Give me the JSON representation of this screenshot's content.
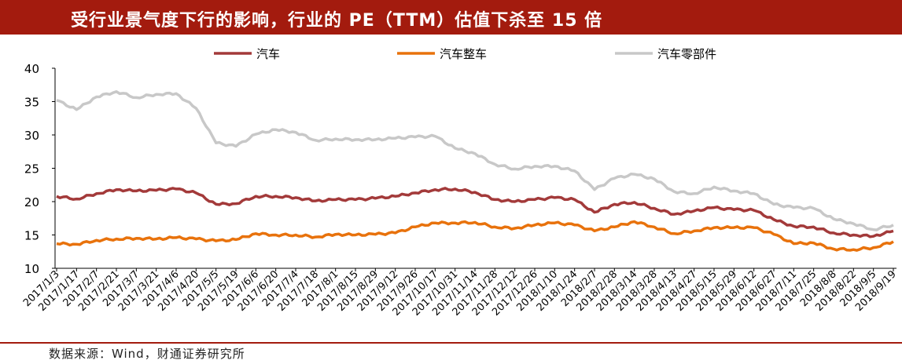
{
  "header": {
    "title": "受行业景气度下行的影响，行业的 PE（TTM）估值下杀至 15 倍"
  },
  "footer": {
    "source": "数据来源：Wind，财通证券研究所"
  },
  "colors": {
    "brand": "#a31b0e",
    "series": [
      "#a33a3a",
      "#e8720c",
      "#c8c8c8"
    ]
  },
  "chart_data": {
    "type": "line",
    "title": "受行业景气度下行的影响，行业的 PE（TTM）估值下杀至 15 倍",
    "xlabel": "",
    "ylabel": "",
    "ylim": [
      10,
      40
    ],
    "yticks": [
      10,
      15,
      20,
      25,
      30,
      35,
      40
    ],
    "grid": false,
    "legend": "top",
    "x": [
      "2017/1/3",
      "2017/1/17",
      "2017/2/7",
      "2017/2/21",
      "2017/3/7",
      "2017/3/21",
      "2017/4/6",
      "2017/4/20",
      "2017/5/5",
      "2017/5/19",
      "2017/6/6",
      "2017/6/20",
      "2017/7/4",
      "2017/7/18",
      "2017/8/1",
      "2017/8/15",
      "2017/8/29",
      "2017/9/12",
      "2017/9/26",
      "2017/10/17",
      "2017/10/31",
      "2017/11/14",
      "2017/11/28",
      "2017/12/12",
      "2017/12/26",
      "2018/1/10",
      "2018/1/24",
      "2018/2/7",
      "2018/2/28",
      "2018/3/14",
      "2018/3/28",
      "2018/4/13",
      "2018/4/27",
      "2018/5/15",
      "2018/5/29",
      "2018/6/12",
      "2018/6/27",
      "2018/7/11",
      "2018/7/25",
      "2018/8/8",
      "2018/8/22",
      "2018/9/5",
      "2018/9/19"
    ],
    "series": [
      {
        "name": "汽车",
        "values": [
          20.8,
          20.4,
          21.2,
          21.8,
          21.6,
          21.7,
          21.9,
          21.3,
          19.6,
          19.7,
          20.8,
          20.8,
          20.6,
          20.1,
          20.3,
          20.3,
          20.5,
          20.8,
          21.3,
          21.8,
          21.9,
          21.4,
          20.3,
          20.0,
          20.3,
          20.6,
          20.3,
          18.4,
          19.6,
          19.9,
          19.0,
          18.1,
          18.6,
          19.1,
          18.8,
          18.7,
          17.3,
          16.3,
          16.2,
          15.3,
          15.0,
          14.8,
          15.6
        ]
      },
      {
        "name": "汽车整车",
        "values": [
          13.7,
          13.6,
          14.2,
          14.4,
          14.5,
          14.4,
          14.6,
          14.4,
          14.1,
          14.3,
          15.2,
          15.0,
          15.0,
          14.7,
          15.1,
          15.0,
          15.1,
          15.3,
          16.2,
          16.8,
          16.8,
          16.9,
          16.2,
          16.0,
          16.5,
          16.8,
          16.5,
          15.6,
          16.2,
          17.0,
          16.2,
          15.2,
          15.6,
          16.1,
          16.1,
          16.1,
          15.1,
          13.7,
          13.8,
          12.9,
          12.8,
          13.1,
          14.0
        ]
      },
      {
        "name": "汽车零部件",
        "values": [
          35.2,
          33.8,
          35.7,
          36.5,
          35.6,
          36.1,
          36.2,
          34.0,
          28.8,
          28.3,
          30.1,
          30.8,
          30.4,
          29.2,
          29.4,
          29.3,
          29.3,
          29.5,
          29.7,
          29.8,
          28.0,
          27.2,
          25.6,
          24.9,
          25.3,
          25.3,
          24.6,
          21.8,
          23.5,
          24.1,
          23.4,
          21.5,
          21.2,
          22.2,
          21.6,
          21.2,
          19.6,
          19.1,
          19.0,
          17.4,
          16.7,
          15.8,
          16.5
        ]
      }
    ]
  }
}
